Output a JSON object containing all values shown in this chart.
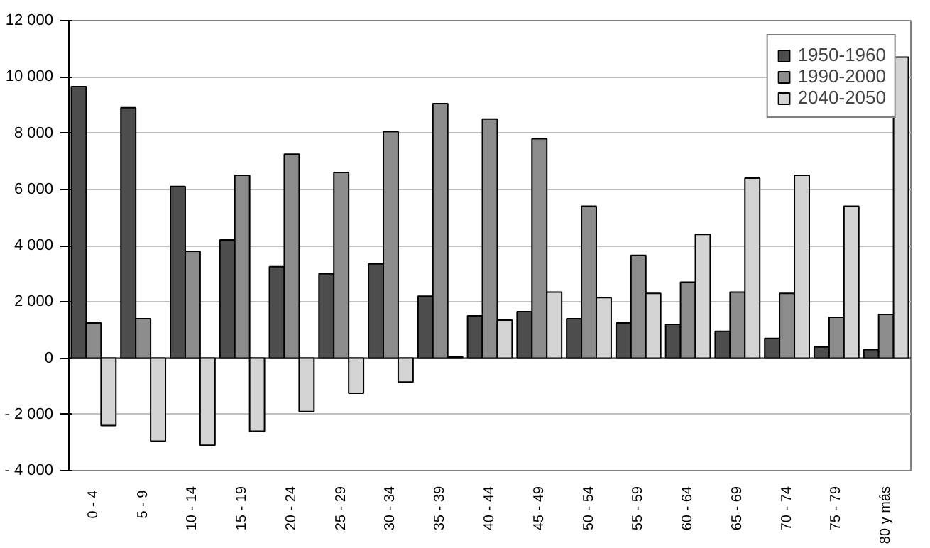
{
  "chart_data": {
    "type": "bar",
    "categories": [
      "0 -  4",
      "5 -  9",
      "10 - 14",
      "15 - 19",
      "20 - 24",
      "25 - 29",
      "30 - 34",
      "35 - 39",
      "40 - 44",
      "45 - 49",
      "50 - 54",
      "55 - 59",
      "60 - 64",
      "65 - 69",
      "70 - 74",
      "75 - 79",
      "80 y más"
    ],
    "series": [
      {
        "name": "1950-1960",
        "color": "#4d4d4d",
        "values": [
          9650,
          8900,
          6100,
          4200,
          3250,
          3000,
          3350,
          2200,
          1500,
          1650,
          1400,
          1250,
          1200,
          950,
          700,
          400,
          300
        ]
      },
      {
        "name": "1990-2000",
        "color": "#8c8c8c",
        "values": [
          1250,
          1400,
          3800,
          6500,
          7250,
          6600,
          8050,
          9050,
          8500,
          7800,
          5400,
          3650,
          2700,
          2350,
          2300,
          1450,
          1550
        ]
      },
      {
        "name": "2040-2050",
        "color": "#d4d4d4",
        "values": [
          -2400,
          -2950,
          -3100,
          -2600,
          -1900,
          -1250,
          -850,
          50,
          1350,
          2350,
          2150,
          2300,
          4400,
          6400,
          6500,
          5400,
          10700
        ]
      }
    ],
    "ylim": [
      -4000,
      12000
    ],
    "yticks": [
      {
        "value": -4000,
        "label": "- 4 000"
      },
      {
        "value": -2000,
        "label": "- 2 000"
      },
      0,
      {
        "value": 2000,
        "label": "2 000"
      },
      {
        "value": 4000,
        "label": "4 000"
      },
      {
        "value": 6000,
        "label": "6 000"
      },
      {
        "value": 8000,
        "label": "8 000"
      },
      {
        "value": 10000,
        "label": "10 000"
      },
      {
        "value": 12000,
        "label": "12 000"
      }
    ],
    "grid": "y",
    "legend": "top right"
  }
}
